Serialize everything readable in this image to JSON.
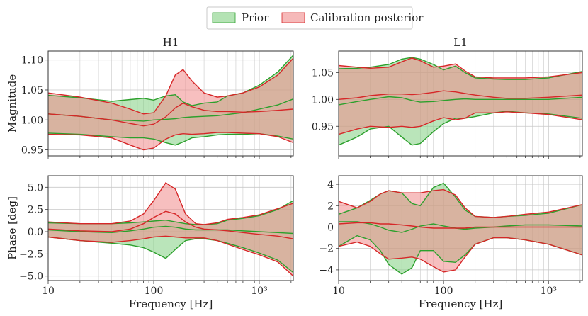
{
  "legend": {
    "items": [
      {
        "label": "Prior",
        "color": "#2ca02c"
      },
      {
        "label": "Calibration posterior",
        "color": "#d62728"
      }
    ]
  },
  "colors": {
    "prior_fill": "#82d082",
    "prior_line": "#2ca02c",
    "post_fill": "#f08a8a",
    "post_line": "#d62728",
    "overlap_fill": "#b98a6e",
    "grid": "#c8c8c8"
  },
  "chart_data": [
    {
      "id": "h1-mag",
      "type": "area",
      "title": "H1",
      "xlabel": "",
      "ylabel": "Magnitude",
      "xscale": "log",
      "xlim": [
        10,
        2100
      ],
      "ylim": [
        0.94,
        1.115
      ],
      "yticks": [
        0.95,
        1.0,
        1.05,
        1.1
      ],
      "ytick_labels": [
        "0.95",
        "1.00",
        "1.05",
        "1.10"
      ],
      "xticks": [
        10,
        100,
        1000
      ],
      "xtick_labels": [
        "",
        "",
        ""
      ],
      "x": [
        10,
        20,
        40,
        60,
        80,
        100,
        130,
        160,
        190,
        230,
        300,
        400,
        500,
        700,
        1000,
        1500,
        2100
      ],
      "prior": {
        "upper": [
          1.041,
          1.037,
          1.031,
          1.034,
          1.036,
          1.033,
          1.04,
          1.042,
          1.03,
          1.024,
          1.028,
          1.03,
          1.04,
          1.045,
          1.058,
          1.08,
          1.108
        ],
        "median": [
          1.01,
          1.006,
          1.0,
          0.999,
          0.998,
          1.0,
          1.001,
          1.002,
          1.004,
          1.005,
          1.006,
          1.007,
          1.009,
          1.012,
          1.018,
          1.025,
          1.035
        ],
        "lower": [
          0.978,
          0.976,
          0.972,
          0.97,
          0.97,
          0.968,
          0.962,
          0.958,
          0.963,
          0.97,
          0.972,
          0.975,
          0.976,
          0.976,
          0.977,
          0.973,
          0.968
        ]
      },
      "posterior": {
        "upper": [
          1.045,
          1.038,
          1.028,
          1.018,
          1.01,
          1.012,
          1.04,
          1.075,
          1.084,
          1.065,
          1.045,
          1.038,
          1.04,
          1.045,
          1.055,
          1.075,
          1.103
        ],
        "median": [
          1.01,
          1.006,
          1.0,
          0.994,
          0.99,
          0.993,
          1.005,
          1.02,
          1.028,
          1.022,
          1.016,
          1.014,
          1.014,
          1.013,
          1.014,
          1.016,
          1.018
        ],
        "lower": [
          0.976,
          0.975,
          0.97,
          0.958,
          0.95,
          0.953,
          0.968,
          0.975,
          0.977,
          0.976,
          0.977,
          0.979,
          0.979,
          0.978,
          0.977,
          0.972,
          0.962
        ]
      }
    },
    {
      "id": "l1-mag",
      "type": "area",
      "title": "L1",
      "xlabel": "",
      "ylabel": "",
      "xscale": "log",
      "xlim": [
        10,
        2100
      ],
      "ylim": [
        0.895,
        1.09
      ],
      "yticks": [
        0.95,
        1.0,
        1.05
      ],
      "ytick_labels": [
        "0.95",
        "1.00",
        "1.05"
      ],
      "xticks": [
        10,
        100,
        1000
      ],
      "xtick_labels": [
        "",
        "",
        ""
      ],
      "x": [
        10,
        15,
        20,
        30,
        40,
        50,
        60,
        80,
        100,
        130,
        160,
        200,
        300,
        400,
        600,
        1000,
        2100
      ],
      "prior": {
        "upper": [
          1.057,
          1.058,
          1.06,
          1.065,
          1.075,
          1.078,
          1.075,
          1.065,
          1.055,
          1.062,
          1.05,
          1.04,
          1.038,
          1.037,
          1.037,
          1.04,
          1.052
        ],
        "median": [
          0.99,
          0.996,
          1.0,
          1.005,
          1.003,
          0.998,
          0.995,
          0.996,
          0.998,
          1.0,
          1.001,
          1.0,
          1.0,
          1.0,
          1.0,
          1.0,
          1.004
        ],
        "lower": [
          0.915,
          0.93,
          0.945,
          0.95,
          0.93,
          0.915,
          0.918,
          0.94,
          0.955,
          0.965,
          0.965,
          0.968,
          0.975,
          0.978,
          0.975,
          0.973,
          0.965
        ]
      },
      "posterior": {
        "upper": [
          1.063,
          1.06,
          1.058,
          1.06,
          1.07,
          1.077,
          1.072,
          1.06,
          1.062,
          1.066,
          1.053,
          1.042,
          1.04,
          1.04,
          1.04,
          1.042,
          1.05
        ],
        "median": [
          1.0,
          1.003,
          1.007,
          1.01,
          1.01,
          1.009,
          1.01,
          1.013,
          1.016,
          1.014,
          1.011,
          1.008,
          1.004,
          1.002,
          1.002,
          1.004,
          1.008
        ],
        "lower": [
          0.935,
          0.945,
          0.95,
          0.948,
          0.95,
          0.948,
          0.95,
          0.96,
          0.966,
          0.962,
          0.965,
          0.975,
          0.975,
          0.977,
          0.975,
          0.972,
          0.962
        ]
      }
    },
    {
      "id": "h1-phase",
      "type": "area",
      "title": "",
      "xlabel": "Frequency [Hz]",
      "ylabel": "Phase [deg]",
      "xscale": "log",
      "xlim": [
        10,
        2100
      ],
      "ylim": [
        -5.5,
        6.3
      ],
      "yticks": [
        -5.0,
        -2.5,
        0.0,
        2.5,
        5.0
      ],
      "ytick_labels": [
        "−5.0",
        "−2.5",
        "0.0",
        "2.5",
        "5.0"
      ],
      "xticks": [
        10,
        100,
        1000
      ],
      "xtick_labels": [
        "10",
        "100",
        "10³"
      ],
      "x": [
        10,
        20,
        40,
        60,
        80,
        100,
        130,
        160,
        200,
        250,
        300,
        400,
        500,
        700,
        1000,
        1500,
        2100
      ],
      "prior": {
        "upper": [
          1.0,
          0.9,
          0.9,
          1.0,
          1.1,
          1.2,
          1.3,
          1.1,
          0.9,
          0.8,
          0.8,
          0.9,
          1.3,
          1.5,
          1.8,
          2.5,
          3.5
        ],
        "median": [
          0.2,
          0.0,
          -0.1,
          0.1,
          0.3,
          0.5,
          0.6,
          0.5,
          0.3,
          0.2,
          0.2,
          0.2,
          0.2,
          0.1,
          0.0,
          -0.1,
          -0.2
        ],
        "lower": [
          -0.6,
          -1.0,
          -1.3,
          -1.5,
          -1.8,
          -2.3,
          -3.0,
          -2.0,
          -1.0,
          -0.8,
          -0.8,
          -1.0,
          -1.3,
          -1.8,
          -2.4,
          -3.2,
          -4.6
        ]
      },
      "posterior": {
        "upper": [
          1.1,
          0.9,
          0.9,
          1.2,
          2.0,
          3.5,
          5.5,
          4.8,
          2.0,
          0.9,
          0.8,
          1.0,
          1.4,
          1.6,
          1.9,
          2.6,
          3.2
        ],
        "median": [
          0.3,
          0.1,
          0.0,
          0.3,
          0.9,
          1.6,
          2.3,
          2.0,
          1.1,
          0.5,
          0.3,
          0.2,
          0.1,
          -0.1,
          -0.3,
          -0.5,
          -0.8
        ],
        "lower": [
          -0.6,
          -1.0,
          -1.2,
          -1.0,
          -0.8,
          -0.6,
          -0.5,
          -0.6,
          -0.7,
          -0.7,
          -0.7,
          -1.0,
          -1.4,
          -2.0,
          -2.6,
          -3.4,
          -5.0
        ]
      }
    },
    {
      "id": "l1-phase",
      "type": "area",
      "title": "",
      "xlabel": "Frequency [Hz]",
      "ylabel": "",
      "xscale": "log",
      "xlim": [
        10,
        2100
      ],
      "ylim": [
        -5.0,
        4.8
      ],
      "yticks": [
        -4,
        -2,
        0,
        2,
        4
      ],
      "ytick_labels": [
        "−4",
        "−2",
        "0",
        "2",
        "4"
      ],
      "xticks": [
        10,
        100,
        1000
      ],
      "xtick_labels": [
        "10",
        "100",
        "10³"
      ],
      "x": [
        10,
        15,
        20,
        25,
        30,
        40,
        50,
        60,
        80,
        100,
        130,
        160,
        200,
        300,
        400,
        600,
        1000,
        2100
      ],
      "prior": {
        "upper": [
          1.2,
          1.8,
          2.5,
          3.1,
          3.4,
          3.2,
          2.2,
          2.0,
          3.7,
          4.1,
          2.8,
          1.6,
          1.0,
          0.9,
          1.0,
          1.1,
          1.3,
          2.1
        ],
        "median": [
          0.5,
          0.5,
          0.3,
          0.0,
          -0.3,
          -0.5,
          -0.2,
          0.1,
          0.3,
          0.1,
          -0.1,
          -0.2,
          -0.1,
          0.0,
          0.1,
          0.2,
          0.2,
          0.1
        ],
        "lower": [
          -1.8,
          -0.8,
          -1.2,
          -2.2,
          -3.5,
          -4.4,
          -3.8,
          -2.2,
          -2.2,
          -3.2,
          -3.3,
          -2.6,
          -1.6,
          -1.0,
          -1.0,
          -1.2,
          -1.6,
          -2.6
        ]
      },
      "posterior": {
        "upper": [
          2.4,
          1.8,
          2.4,
          3.1,
          3.4,
          3.2,
          3.2,
          3.2,
          3.4,
          3.5,
          3.0,
          1.8,
          1.0,
          0.9,
          1.0,
          1.2,
          1.4,
          2.1
        ],
        "median": [
          0.3,
          0.4,
          0.4,
          0.3,
          0.3,
          0.2,
          0.1,
          0.0,
          -0.1,
          -0.1,
          -0.1,
          -0.1,
          0.0,
          0.0,
          0.0,
          0.0,
          0.0,
          0.0
        ],
        "lower": [
          -1.8,
          -1.4,
          -1.8,
          -2.5,
          -3.0,
          -2.9,
          -2.8,
          -3.0,
          -3.7,
          -4.2,
          -4.0,
          -2.8,
          -1.6,
          -1.0,
          -1.0,
          -1.2,
          -1.6,
          -2.6
        ]
      }
    }
  ]
}
